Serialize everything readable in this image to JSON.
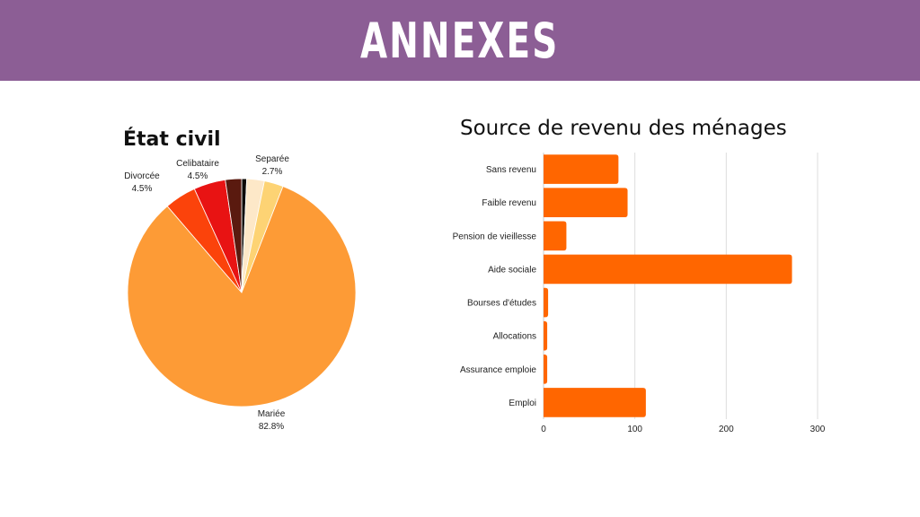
{
  "banner": {
    "title": "ANNEXES"
  },
  "colors": {
    "banner_bg": "#8c5e95",
    "bar": "#ff6600",
    "grid": "#dddddd"
  },
  "chart_data": [
    {
      "type": "pie",
      "title": "État civil",
      "slices": [
        {
          "label": "Mariée",
          "value": 82.8,
          "value_label": "82.8%",
          "color": "#fd9b36",
          "labeled": true
        },
        {
          "label": "Divorcée",
          "value": 4.5,
          "value_label": "4.5%",
          "color": "#fb430b",
          "labeled": true
        },
        {
          "label": "Celibataire",
          "value": 4.5,
          "value_label": "4.5%",
          "color": "#e81313",
          "labeled": true
        },
        {
          "label": "",
          "value": 2.3,
          "value_label": "",
          "color": "#5a1a0f",
          "labeled": false
        },
        {
          "label": "",
          "value": 0.7,
          "value_label": "",
          "color": "#0d0a06",
          "labeled": false
        },
        {
          "label": "",
          "value": 2.5,
          "value_label": "",
          "color": "#fde8c8",
          "labeled": false
        },
        {
          "label": "Separée",
          "value": 2.7,
          "value_label": "2.7%",
          "color": "#fdd374",
          "labeled": true
        }
      ]
    },
    {
      "type": "bar",
      "orientation": "horizontal",
      "title": "Source de revenu des ménages",
      "categories": [
        "Sans revenu",
        "Faible revenu",
        "Pension de vieillesse",
        "Aide sociale",
        "Bourses d'études",
        "Allocations",
        "Assurance emploie",
        "Emploi"
      ],
      "values": [
        82,
        92,
        25,
        272,
        5,
        4,
        4,
        112
      ],
      "xlim": [
        0,
        300
      ],
      "xticks": [
        0,
        100,
        200,
        300
      ],
      "grid": true
    }
  ]
}
